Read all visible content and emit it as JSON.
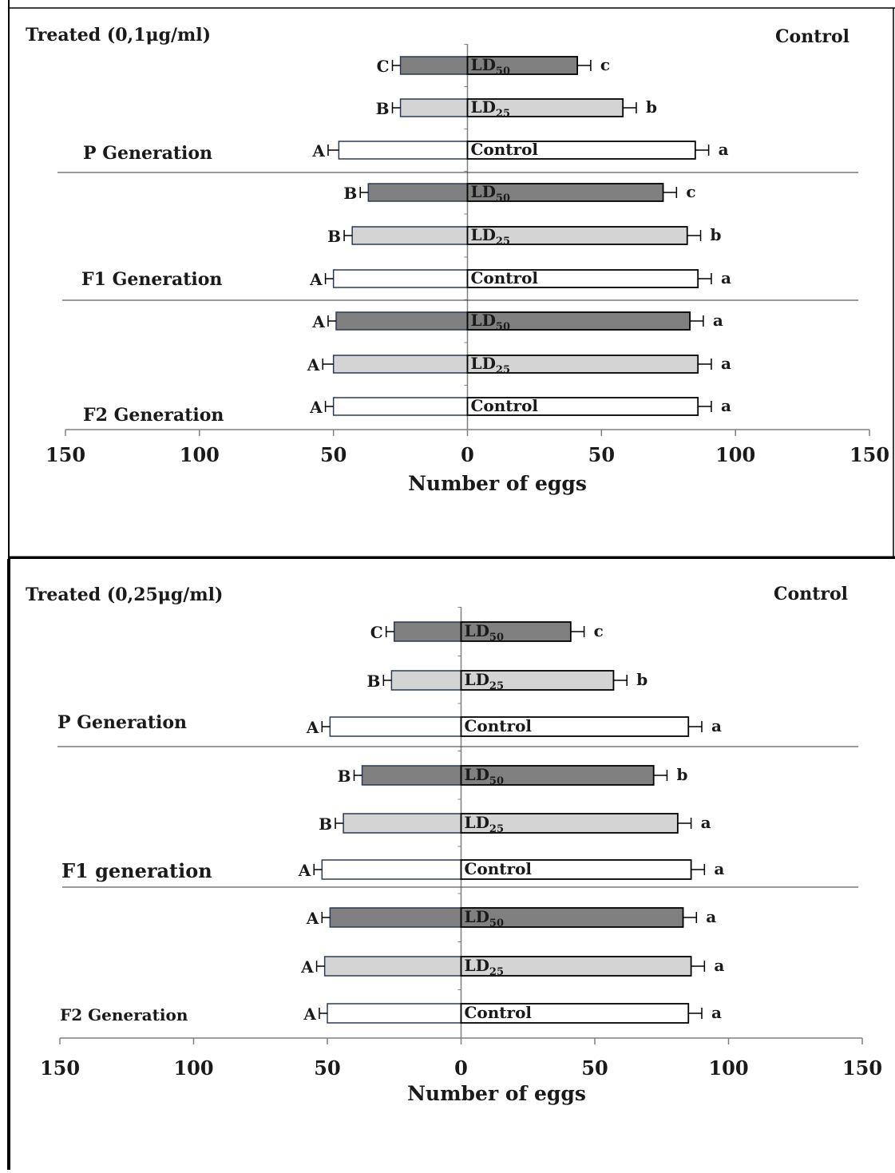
{
  "chart_data": [
    {
      "type": "bar",
      "orientation": "horizontal-butterfly",
      "left_header": "Treated (0,1μg/ml)",
      "right_header": "Control",
      "xlabel": "Number of eggs",
      "xlim": [
        -150,
        150
      ],
      "x_ticks": [
        "150",
        "100",
        "50",
        "0",
        "50",
        "100",
        "150"
      ],
      "groups": [
        "P Generation",
        "F1 Generation",
        "F2 Generation"
      ],
      "rows": [
        {
          "group": "P Generation",
          "label": "LD50",
          "treated": 25,
          "treated_err": 3,
          "treated_letter": "C",
          "control": 41,
          "control_err": 5,
          "control_letter": "c",
          "fill": "#808080"
        },
        {
          "group": "P Generation",
          "label": "LD25",
          "treated": 25,
          "treated_err": 3,
          "treated_letter": "B",
          "control": 58,
          "control_err": 5,
          "control_letter": "b",
          "fill": "#d4d4d4"
        },
        {
          "group": "P Generation",
          "label": "Control",
          "treated": 48,
          "treated_err": 4,
          "treated_letter": "A",
          "control": 85,
          "control_err": 5,
          "control_letter": "a",
          "fill": "#ffffff"
        },
        {
          "group": "F1 Generation",
          "label": "LD50",
          "treated": 37,
          "treated_err": 3,
          "treated_letter": "B",
          "control": 73,
          "control_err": 5,
          "control_letter": "c",
          "fill": "#808080"
        },
        {
          "group": "F1 Generation",
          "label": "LD25",
          "treated": 43,
          "treated_err": 3,
          "treated_letter": "B",
          "control": 82,
          "control_err": 5,
          "control_letter": "b",
          "fill": "#d4d4d4"
        },
        {
          "group": "F1 Generation",
          "label": "Control",
          "treated": 50,
          "treated_err": 3,
          "treated_letter": "A",
          "control": 86,
          "control_err": 5,
          "control_letter": "a",
          "fill": "#ffffff"
        },
        {
          "group": "F2 Generation",
          "label": "LD50",
          "treated": 49,
          "treated_err": 3,
          "treated_letter": "A",
          "control": 83,
          "control_err": 5,
          "control_letter": "a",
          "fill": "#808080"
        },
        {
          "group": "F2 Generation",
          "label": "LD25",
          "treated": 50,
          "treated_err": 4,
          "treated_letter": "A",
          "control": 86,
          "control_err": 5,
          "control_letter": "a",
          "fill": "#d4d4d4"
        },
        {
          "group": "F2 Generation",
          "label": "Control",
          "treated": 50,
          "treated_err": 3,
          "treated_letter": "A",
          "control": 86,
          "control_err": 5,
          "control_letter": "a",
          "fill": "#ffffff"
        }
      ]
    },
    {
      "type": "bar",
      "orientation": "horizontal-butterfly",
      "left_header": "Treated (0,25μg/ml)",
      "right_header": "Control",
      "xlabel": "Number of eggs",
      "xlim": [
        -150,
        150
      ],
      "x_ticks": [
        "150",
        "100",
        "50",
        "0",
        "50",
        "100",
        "150"
      ],
      "groups": [
        "P Generation",
        "F1 generation",
        "F2 Generation"
      ],
      "rows": [
        {
          "group": "P Generation",
          "label": "LD50",
          "treated": 25,
          "treated_err": 3,
          "treated_letter": "C",
          "control": 41,
          "control_err": 5,
          "control_letter": "c",
          "fill": "#808080"
        },
        {
          "group": "P Generation",
          "label": "LD25",
          "treated": 26,
          "treated_err": 3,
          "treated_letter": "B",
          "control": 57,
          "control_err": 5,
          "control_letter": "b",
          "fill": "#d4d4d4"
        },
        {
          "group": "P Generation",
          "label": "Control",
          "treated": 49,
          "treated_err": 3,
          "treated_letter": "A",
          "control": 85,
          "control_err": 5,
          "control_letter": "a",
          "fill": "#ffffff"
        },
        {
          "group": "F1 generation",
          "label": "LD50",
          "treated": 37,
          "treated_err": 3,
          "treated_letter": "B",
          "control": 72,
          "control_err": 5,
          "control_letter": "b",
          "fill": "#808080"
        },
        {
          "group": "F1 generation",
          "label": "LD25",
          "treated": 44,
          "treated_err": 3,
          "treated_letter": "B",
          "control": 81,
          "control_err": 5,
          "control_letter": "a",
          "fill": "#d4d4d4"
        },
        {
          "group": "F1 generation",
          "label": "Control",
          "treated": 52,
          "treated_err": 3,
          "treated_letter": "A",
          "control": 86,
          "control_err": 5,
          "control_letter": "a",
          "fill": "#ffffff"
        },
        {
          "group": "F2 generation",
          "label": "LD50",
          "treated": 49,
          "treated_err": 3,
          "treated_letter": "A",
          "control": 83,
          "control_err": 5,
          "control_letter": "a",
          "fill": "#808080"
        },
        {
          "group": "F2 generation",
          "label": "LD25",
          "treated": 51,
          "treated_err": 3,
          "treated_letter": "A",
          "control": 86,
          "control_err": 5,
          "control_letter": "a",
          "fill": "#d4d4d4"
        },
        {
          "group": "F2 generation",
          "label": "Control",
          "treated": 50,
          "treated_err": 3,
          "treated_letter": "A",
          "control": 85,
          "control_err": 5,
          "control_letter": "a",
          "fill": "#ffffff"
        }
      ]
    }
  ]
}
